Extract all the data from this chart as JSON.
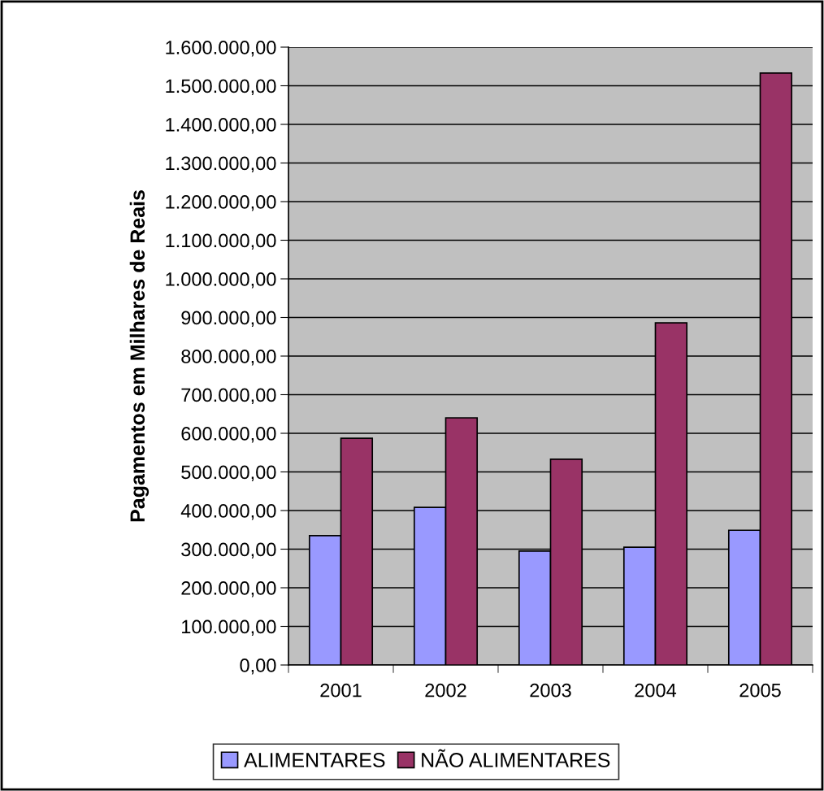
{
  "chart_data": {
    "type": "bar",
    "ylabel": "Pagamentos em Milhares de Reais",
    "categories": [
      "2001",
      "2002",
      "2003",
      "2004",
      "2005"
    ],
    "series": [
      {
        "name": "ALIMENTARES",
        "color": "#9999ff",
        "values": [
          335000,
          408000,
          295000,
          305000,
          349000
        ]
      },
      {
        "name": "NÃO ALIMENTARES",
        "color": "#993366",
        "values": [
          587000,
          640000,
          533000,
          886000,
          1533000
        ]
      }
    ],
    "ylim": [
      0,
      1600000
    ],
    "yticks": [
      {
        "value": 0,
        "label": "0,00"
      },
      {
        "value": 100000,
        "label": "100.000,00"
      },
      {
        "value": 200000,
        "label": "200.000,00"
      },
      {
        "value": 300000,
        "label": "300.000,00"
      },
      {
        "value": 400000,
        "label": "400.000,00"
      },
      {
        "value": 500000,
        "label": "500.000,00"
      },
      {
        "value": 600000,
        "label": "600.000,00"
      },
      {
        "value": 700000,
        "label": "700.000,00"
      },
      {
        "value": 800000,
        "label": "800.000,00"
      },
      {
        "value": 900000,
        "label": "900.000,00"
      },
      {
        "value": 1000000,
        "label": "1.000.000,00"
      },
      {
        "value": 1100000,
        "label": "1.100.000,00"
      },
      {
        "value": 1200000,
        "label": "1.200.000,00"
      },
      {
        "value": 1300000,
        "label": "1.300.000,00"
      },
      {
        "value": 1400000,
        "label": "1.400.000,00"
      },
      {
        "value": 1500000,
        "label": "1.500.000,00"
      },
      {
        "value": 1600000,
        "label": "1.600.000,00"
      }
    ],
    "grid": "y",
    "legend": "bottom"
  }
}
